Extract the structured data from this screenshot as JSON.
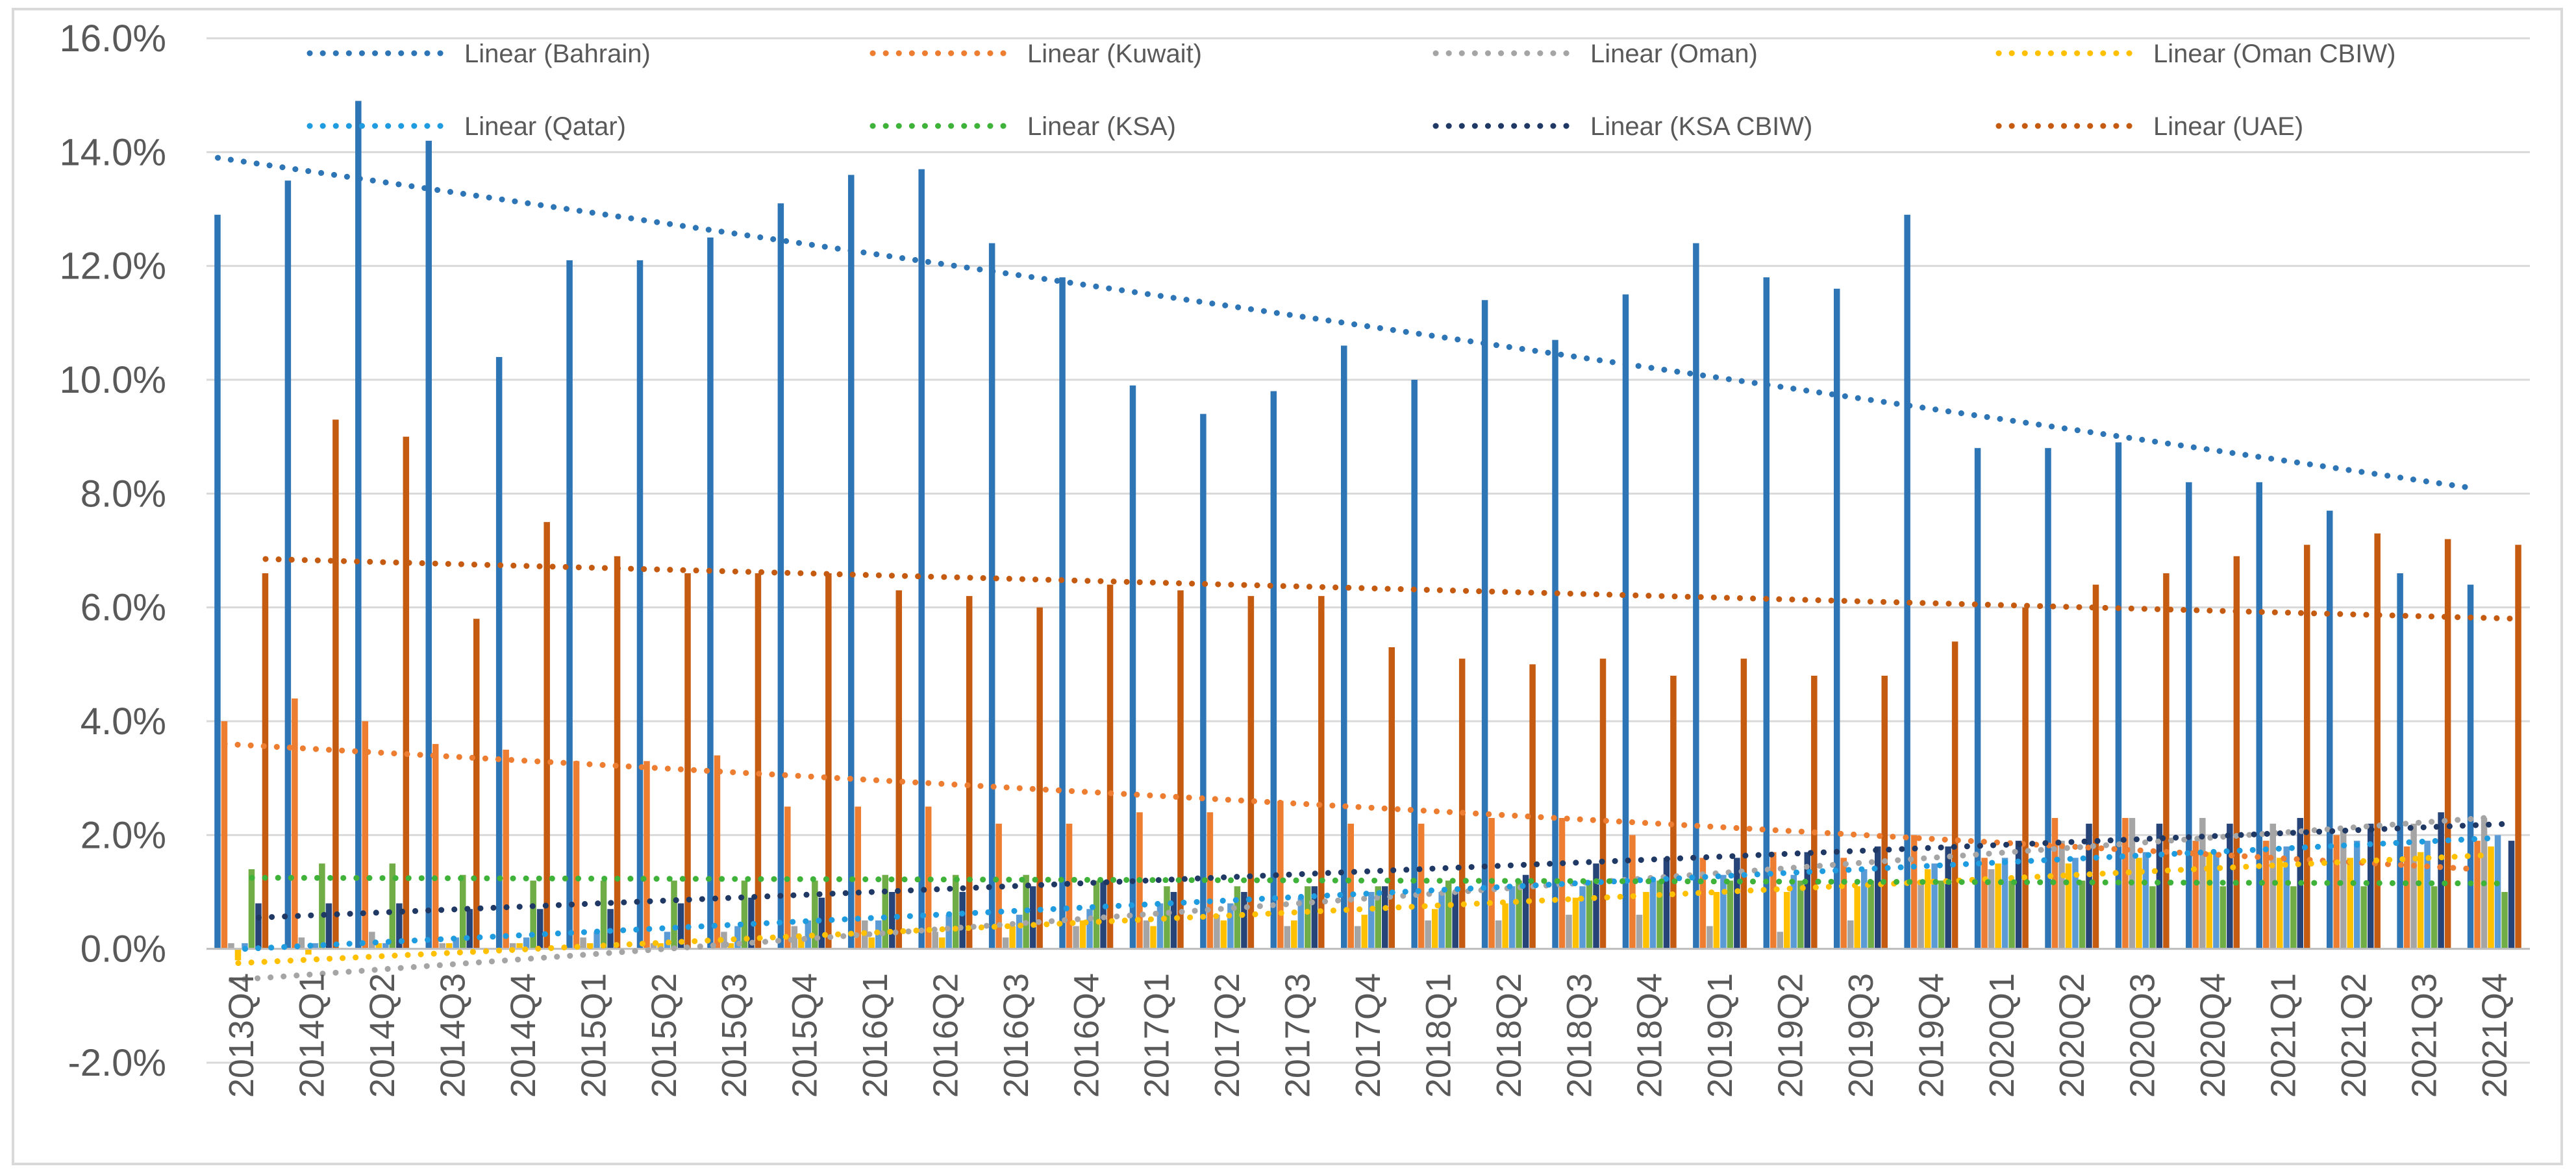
{
  "chart_data": {
    "type": "bar",
    "title": "",
    "xlabel": "",
    "ylabel": "",
    "y_format": "percent_1dp",
    "ylim": [
      -2.0,
      16.0
    ],
    "y_ticks": [
      -2.0,
      0.0,
      2.0,
      4.0,
      6.0,
      8.0,
      10.0,
      12.0,
      14.0,
      16.0
    ],
    "y_tick_labels": [
      "-2.0%",
      "0.0%",
      "2.0%",
      "4.0%",
      "6.0%",
      "8.0%",
      "10.0%",
      "12.0%",
      "14.0%",
      "16.0%"
    ],
    "grid": "horizontal",
    "legend_position": "top",
    "categories": [
      "2013Q4",
      "2014Q1",
      "2014Q2",
      "2014Q3",
      "2014Q4",
      "2015Q1",
      "2015Q2",
      "2015Q3",
      "2015Q4",
      "2016Q1",
      "2016Q2",
      "2016Q3",
      "2016Q4",
      "2017Q1",
      "2017Q2",
      "2017Q3",
      "2017Q4",
      "2018Q1",
      "2018Q2",
      "2018Q3",
      "2018Q4",
      "2019Q1",
      "2019Q2",
      "2019Q3",
      "2019Q4",
      "2020Q1",
      "2020Q2",
      "2020Q3",
      "2020Q4",
      "2021Q1",
      "2021Q2",
      "2021Q3",
      "2021Q4"
    ],
    "series": [
      {
        "name": "Bahrain",
        "color": "#2e75b6",
        "values": [
          12.9,
          13.5,
          14.9,
          14.2,
          10.4,
          12.1,
          12.1,
          12.5,
          13.1,
          13.6,
          13.7,
          12.4,
          11.8,
          9.9,
          9.4,
          9.8,
          10.6,
          10.0,
          11.4,
          10.7,
          11.5,
          12.4,
          11.8,
          11.6,
          12.9,
          8.8,
          8.8,
          8.9,
          8.2,
          8.2,
          7.7,
          6.6,
          6.4
        ]
      },
      {
        "name": "Kuwait",
        "color": "#ed7d31",
        "values": [
          4.0,
          4.4,
          4.0,
          3.6,
          3.5,
          3.3,
          3.3,
          3.4,
          2.5,
          2.5,
          2.5,
          2.2,
          2.2,
          2.4,
          2.4,
          2.6,
          2.2,
          2.2,
          2.3,
          2.3,
          2.0,
          1.6,
          1.7,
          1.6,
          2.0,
          1.6,
          2.3,
          2.3,
          1.9,
          1.9,
          2.0,
          1.8,
          1.9
        ]
      },
      {
        "name": "Oman",
        "color": "#a5a5a5",
        "values": [
          0.1,
          0.2,
          0.3,
          0.1,
          0.1,
          0.2,
          0.1,
          0.3,
          0.4,
          0.5,
          0.3,
          0.2,
          0.4,
          0.5,
          0.6,
          0.4,
          0.4,
          0.5,
          0.5,
          0.6,
          0.6,
          0.4,
          0.3,
          0.5,
          1.2,
          1.4,
          1.9,
          2.3,
          2.3,
          2.2,
          2.1,
          2.2,
          2.3
        ]
      },
      {
        "name": "Oman CBIW",
        "color": "#ffc000",
        "values": [
          -0.2,
          -0.1,
          0.1,
          0.1,
          0.1,
          0.1,
          0.1,
          0.1,
          0.2,
          0.2,
          0.2,
          0.4,
          0.5,
          0.4,
          0.5,
          0.5,
          0.6,
          0.7,
          0.8,
          0.9,
          1.0,
          1.0,
          1.0,
          1.1,
          1.4,
          1.5,
          1.5,
          1.6,
          1.7,
          1.6,
          1.6,
          1.7,
          1.8
        ]
      },
      {
        "name": "Qatar",
        "color": "#5b9bd5",
        "values": [
          0.1,
          0.1,
          0.1,
          0.2,
          0.2,
          0.3,
          0.3,
          0.4,
          0.5,
          0.5,
          0.6,
          0.6,
          0.7,
          0.8,
          0.8,
          0.9,
          1.0,
          1.0,
          1.1,
          1.1,
          1.2,
          1.3,
          1.3,
          1.4,
          1.5,
          1.6,
          1.6,
          1.7,
          1.7,
          1.8,
          1.9,
          1.9,
          2.0
        ]
      },
      {
        "name": "KSA",
        "color": "#70ad47",
        "values": [
          1.4,
          1.5,
          1.5,
          1.3,
          1.2,
          1.2,
          1.2,
          1.2,
          1.2,
          1.3,
          1.3,
          1.3,
          1.2,
          1.1,
          1.1,
          1.1,
          1.1,
          1.2,
          1.2,
          1.2,
          1.2,
          1.2,
          1.2,
          1.2,
          1.2,
          1.2,
          1.2,
          1.1,
          1.1,
          1.1,
          1.1,
          1.1,
          1.0
        ]
      },
      {
        "name": "KSA CBIW",
        "color": "#264478",
        "values": [
          0.8,
          0.8,
          0.8,
          0.7,
          0.7,
          0.7,
          0.8,
          0.9,
          0.9,
          1.0,
          1.0,
          1.1,
          1.2,
          1.0,
          1.0,
          1.1,
          1.1,
          1.0,
          1.3,
          1.5,
          1.6,
          1.6,
          1.7,
          1.8,
          1.8,
          1.9,
          2.2,
          2.2,
          2.2,
          2.3,
          2.2,
          2.4,
          1.9
        ]
      },
      {
        "name": "UAE",
        "color": "#c55a11",
        "values": [
          6.6,
          9.3,
          9.0,
          5.8,
          7.5,
          6.9,
          6.6,
          6.6,
          6.6,
          6.3,
          6.2,
          6.0,
          6.4,
          6.3,
          6.2,
          6.2,
          5.3,
          5.1,
          5.0,
          5.1,
          4.8,
          5.1,
          4.8,
          4.8,
          5.4,
          6.0,
          6.4,
          6.6,
          6.9,
          7.1,
          7.3,
          7.2,
          7.1
        ]
      }
    ],
    "trendlines": [
      {
        "name": "Linear (Bahrain)",
        "series": "Bahrain",
        "color": "#2e75b6",
        "start": 13.9,
        "end": 8.1
      },
      {
        "name": "Linear (Kuwait)",
        "series": "Kuwait",
        "color": "#ed7d31",
        "start": 3.6,
        "end": 1.4
      },
      {
        "name": "Linear (Oman)",
        "series": "Oman",
        "color": "#a5a5a5",
        "start": -0.55,
        "end": 2.3
      },
      {
        "name": "Linear (Oman CBIW)",
        "series": "Oman CBIW",
        "color": "#ffc000",
        "start": -0.25,
        "end": 1.65
      },
      {
        "name": "Linear (Qatar)",
        "series": "Qatar",
        "color": "#1f9be0",
        "start": 0.0,
        "end": 1.95
      },
      {
        "name": "Linear (KSA)",
        "series": "KSA",
        "color": "#3fb23a",
        "start": 1.25,
        "end": 1.15
      },
      {
        "name": "Linear (KSA CBIW)",
        "series": "KSA CBIW",
        "color": "#1f3864",
        "start": 0.55,
        "end": 2.2
      },
      {
        "name": "Linear (UAE)",
        "series": "UAE",
        "color": "#c55a11",
        "start": 6.85,
        "end": 5.8
      }
    ],
    "legend": [
      "Linear (Bahrain)",
      "Linear (Kuwait)",
      "Linear (Oman)",
      "Linear (Oman CBIW)",
      "Linear (Qatar)",
      "Linear (KSA)",
      "Linear (KSA CBIW)",
      "Linear (UAE)"
    ]
  }
}
